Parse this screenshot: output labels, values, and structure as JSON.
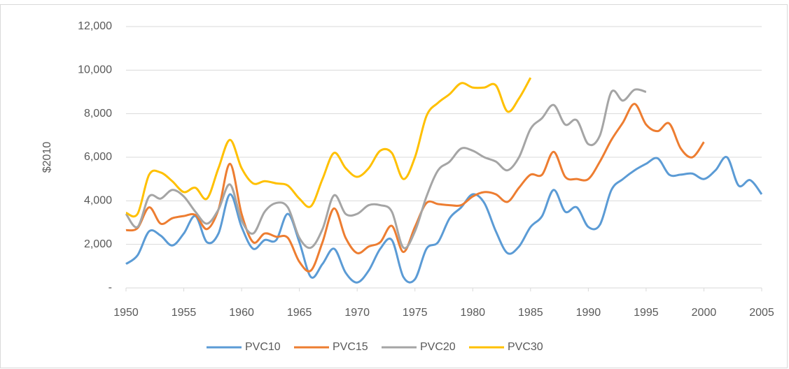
{
  "chart_data": {
    "type": "line",
    "y_label": "$2010",
    "x": [
      1950,
      1951,
      1952,
      1953,
      1954,
      1955,
      1956,
      1957,
      1958,
      1959,
      1960,
      1961,
      1962,
      1963,
      1964,
      1965,
      1966,
      1967,
      1968,
      1969,
      1970,
      1971,
      1972,
      1973,
      1974,
      1975,
      1976,
      1977,
      1978,
      1979,
      1980,
      1981,
      1982,
      1983,
      1984,
      1985,
      1986,
      1987,
      1988,
      1989,
      1990,
      1991,
      1992,
      1993,
      1994,
      1995,
      1996,
      1997,
      1998,
      1999,
      2000,
      2001,
      2002,
      2003,
      2004,
      2005
    ],
    "xlim": [
      1950,
      2005
    ],
    "xticks": [
      1950,
      1955,
      1960,
      1965,
      1970,
      1975,
      1980,
      1985,
      1990,
      1995,
      2000,
      2005
    ],
    "ylim": [
      0,
      12000
    ],
    "yticks": [
      {
        "value": 0,
        "label": "-"
      },
      {
        "value": 2000,
        "label": "2,000"
      },
      {
        "value": 4000,
        "label": "4,000"
      },
      {
        "value": 6000,
        "label": "6,000"
      },
      {
        "value": 8000,
        "label": "8,000"
      },
      {
        "value": 10000,
        "label": "10,000"
      },
      {
        "value": 12000,
        "label": "12,000"
      }
    ],
    "grid": true,
    "legend": "bottom",
    "series": [
      {
        "name": "PVC10",
        "color": "#5b9bd5",
        "values": [
          1100,
          1500,
          2600,
          2400,
          1950,
          2500,
          3300,
          2100,
          2500,
          4300,
          2800,
          1800,
          2200,
          2200,
          3400,
          2100,
          500,
          1100,
          1800,
          700,
          250,
          800,
          1800,
          2200,
          500,
          400,
          1800,
          2100,
          3200,
          3700,
          4300,
          3900,
          2600,
          1600,
          1900,
          2800,
          3300,
          4500,
          3500,
          3700,
          2800,
          2900,
          4500,
          5000,
          5400,
          5700,
          5950,
          5200,
          5200,
          5250,
          5000,
          5400,
          6000,
          4700,
          4950,
          4300
        ]
      },
      {
        "name": "PVC15",
        "color": "#ed7d31",
        "values": [
          2650,
          2750,
          3700,
          2950,
          3200,
          3300,
          3350,
          2700,
          3600,
          5700,
          3400,
          2100,
          2500,
          2350,
          2300,
          1200,
          800,
          2100,
          3650,
          2300,
          1600,
          1900,
          2100,
          2850,
          1650,
          2800,
          3900,
          3850,
          3800,
          3800,
          4200,
          4400,
          4300,
          3950,
          4600,
          5200,
          5200,
          6250,
          5100,
          5000,
          5000,
          5800,
          6800,
          7600,
          8450,
          7500,
          7200,
          7550,
          6400,
          6000,
          6700,
          null,
          null,
          null,
          null,
          null
        ]
      },
      {
        "name": "PVC20",
        "color": "#a5a5a5",
        "values": [
          3400,
          2800,
          4200,
          4100,
          4500,
          4200,
          3500,
          2950,
          3600,
          4750,
          3100,
          2500,
          3500,
          3900,
          3700,
          2300,
          1850,
          2700,
          4250,
          3400,
          3400,
          3800,
          3800,
          3500,
          1850,
          2600,
          4200,
          5400,
          5800,
          6400,
          6300,
          6000,
          5800,
          5400,
          6000,
          7300,
          7800,
          8400,
          7500,
          7700,
          6600,
          7000,
          9000,
          8600,
          9100,
          9000,
          null,
          null,
          null,
          null,
          null,
          null,
          null,
          null,
          null,
          null
        ]
      },
      {
        "name": "PVC30",
        "color": "#ffc000",
        "values": [
          3450,
          3400,
          5200,
          5300,
          4900,
          4400,
          4600,
          4100,
          5500,
          6800,
          5500,
          4800,
          4900,
          4800,
          4700,
          4100,
          3750,
          5000,
          6200,
          5500,
          5100,
          5500,
          6300,
          6200,
          5000,
          6000,
          7900,
          8500,
          8900,
          9400,
          9200,
          9200,
          9300,
          8100,
          8700,
          9650,
          null,
          null,
          null,
          null,
          null,
          null,
          null,
          null,
          null,
          null,
          null,
          null,
          null,
          null,
          null,
          null,
          null,
          null,
          null,
          null
        ]
      }
    ]
  }
}
